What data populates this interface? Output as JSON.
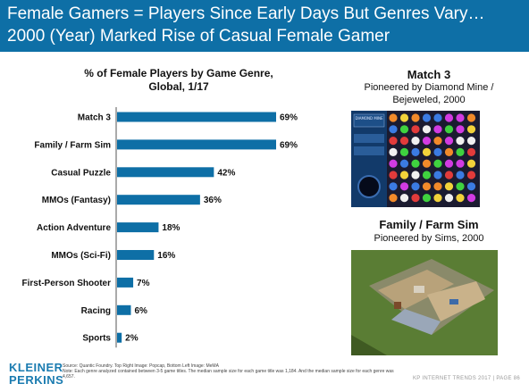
{
  "header": {
    "title_line1": "Female Gamers = Players Since Early Days But Genres Vary…",
    "title_line2": "2000 (Year) Marked Rise of Casual Female Gamer"
  },
  "chart_data": {
    "type": "bar",
    "orientation": "horizontal",
    "title_line1": "% of Female Players by Game Genre,",
    "title_line2": "Global, 1/17",
    "categories": [
      "Match 3",
      "Family / Farm Sim",
      "Casual Puzzle",
      "MMOs (Fantasy)",
      "Action Adventure",
      "MMOs (Sci-Fi)",
      "First-Person Shooter",
      "Racing",
      "Sports"
    ],
    "values": [
      69,
      69,
      42,
      36,
      18,
      16,
      7,
      6,
      2
    ],
    "value_labels": [
      "69%",
      "69%",
      "42%",
      "36%",
      "18%",
      "16%",
      "7%",
      "6%",
      "2%"
    ],
    "unit": "%",
    "xlim": [
      0,
      75
    ],
    "bar_color": "#0e6fa6",
    "grid": false
  },
  "sidebar": {
    "panel1": {
      "title": "Match 3",
      "line1": "Pioneered by Diamond Mine /",
      "line2": "Bejeweled, 2000"
    },
    "panel2": {
      "title": "Family / Farm Sim",
      "line1": "Pioneered by Sims, 2000"
    },
    "game_logo_text": "DIAMOND MINE"
  },
  "footer": {
    "logo_line1": "KLEINER",
    "logo_line2": "PERKINS",
    "source": "Source: Quantic Foundry. Top Right Image: Popcap, Bottom Left Image: MeMA",
    "note": "Note: Each genre analyzed contained between 3-5 game titles. The median sample size for each game title was 1,184. And the median sample size for each genre was 4,657.",
    "page": "KP INTERNET TRENDS 2017 | PAGE 86"
  },
  "colors": {
    "header_bg": "#0e6fa6",
    "bar": "#0e6fa6"
  }
}
